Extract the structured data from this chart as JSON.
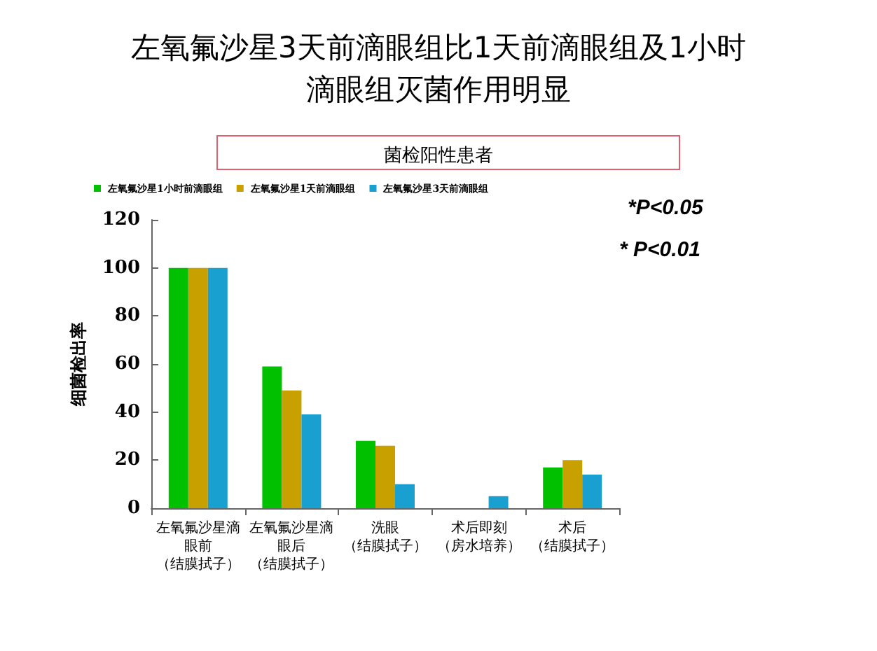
{
  "chart_data": {
    "type": "bar",
    "title": "左氧氟沙星3天前滴眼组比1天前滴眼组及1小时滴眼组灭菌作用明显",
    "subtitle": "菌检阳性患者",
    "ylabel": "细菌检出率",
    "categories": [
      "左氧氟沙星滴眼前（结膜拭子）",
      "左氧氟沙星滴眼后（结膜拭子）",
      "洗眼（结膜拭子）",
      "术后即刻（房水培养）",
      "术后（结膜拭子）"
    ],
    "series": [
      {
        "name": "左氧氟沙星1小时前滴眼组",
        "color": "#00c000",
        "values": [
          100,
          59,
          28,
          0,
          17
        ]
      },
      {
        "name": "左氧氟沙星1天前滴眼组",
        "color": "#c8a000",
        "values": [
          100,
          49,
          26,
          0,
          20
        ]
      },
      {
        "name": "左氧氟沙星3天前滴眼组",
        "color": "#1aa0d0",
        "values": [
          100,
          39,
          10,
          5,
          14
        ]
      }
    ],
    "ylim": [
      0,
      120
    ],
    "yticks": [
      0,
      20,
      40,
      60,
      80,
      100,
      120
    ],
    "grid": false,
    "legend": "top left",
    "annotations": [
      "*P<0.05",
      "* P<0.01"
    ]
  }
}
